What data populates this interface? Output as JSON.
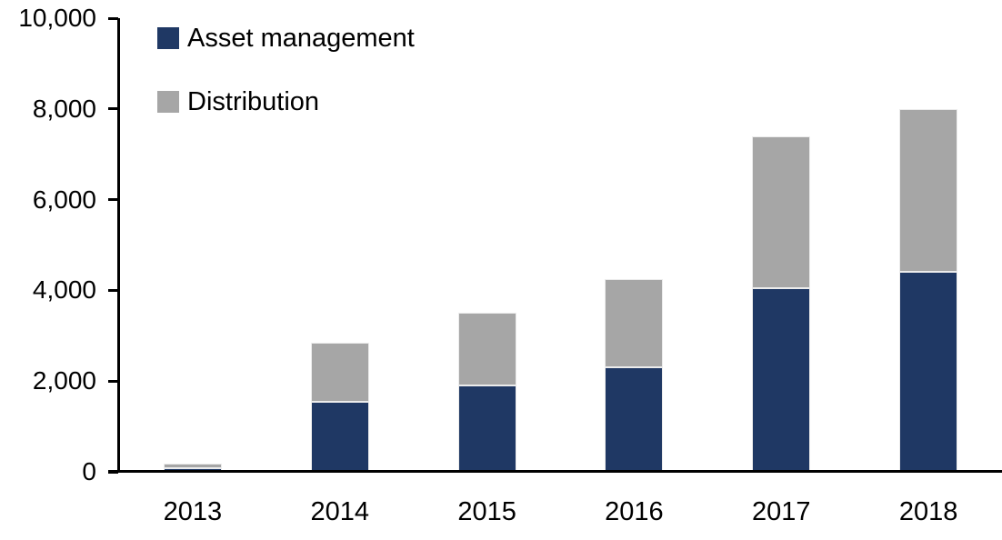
{
  "chart_data": {
    "type": "bar",
    "stacked": true,
    "title": "",
    "xlabel": "",
    "ylabel": "",
    "categories": [
      "2013",
      "2014",
      "2015",
      "2016",
      "2017",
      "2018"
    ],
    "series": [
      {
        "name": "Asset management",
        "color": "#1F3864",
        "values": [
          80,
          1550,
          1900,
          2300,
          4050,
          4400
        ]
      },
      {
        "name": "Distribution",
        "color": "#A6A6A6",
        "values": [
          100,
          1300,
          1600,
          1950,
          3350,
          3600
        ]
      }
    ],
    "totals": [
      180,
      2850,
      3500,
      4250,
      7400,
      8000
    ],
    "ylim": [
      0,
      10000
    ],
    "yticks": [
      0,
      2000,
      4000,
      6000,
      8000,
      10000
    ],
    "ytick_labels": [
      "0",
      "2,000",
      "4,000",
      "6,000",
      "8,000",
      "10,000"
    ],
    "grid": false,
    "legend_position": "top-left",
    "axis_color": "#000000",
    "text_color": "#000000"
  }
}
